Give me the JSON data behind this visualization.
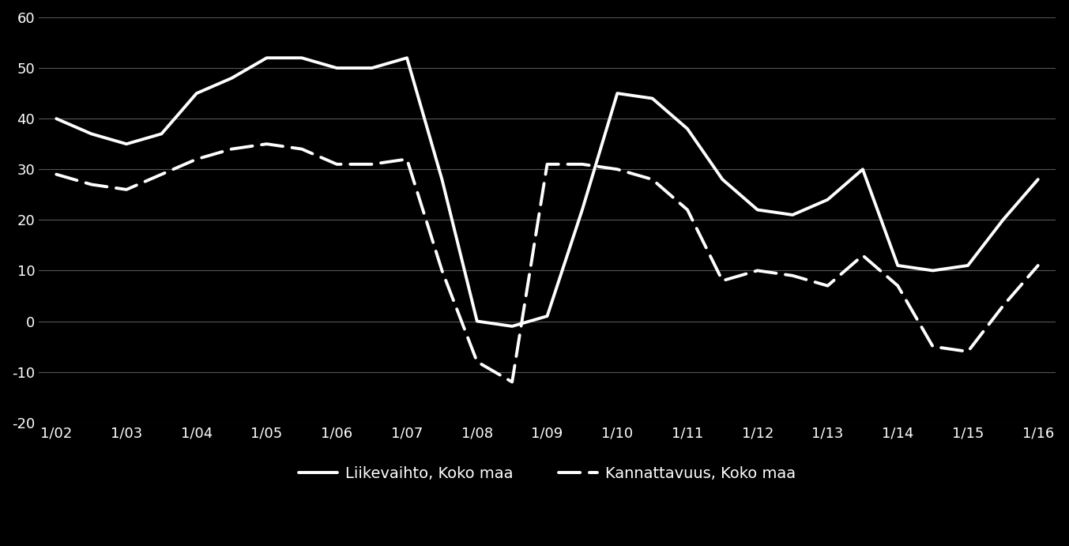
{
  "x_labels": [
    "1/02",
    "1/03",
    "1/04",
    "1/05",
    "1/06",
    "1/07",
    "1/08",
    "1/09",
    "1/10",
    "1/11",
    "1/12",
    "1/13",
    "1/14",
    "1/15",
    "1/16"
  ],
  "x_positions": [
    0,
    2,
    4,
    6,
    8,
    10,
    12,
    14,
    16,
    18,
    20,
    22,
    24,
    26,
    28
  ],
  "liikevaihto_x": [
    0,
    1,
    2,
    3,
    4,
    5,
    6,
    7,
    8,
    9,
    10,
    11,
    12,
    13,
    14,
    15,
    16,
    17,
    18,
    19,
    20,
    21,
    22,
    23,
    24,
    25,
    26,
    27,
    28
  ],
  "liikevaihto_y": [
    40,
    37,
    35,
    37,
    45,
    48,
    52,
    52,
    50,
    50,
    52,
    28,
    0,
    -1,
    1,
    22,
    45,
    44,
    38,
    28,
    22,
    21,
    24,
    30,
    11,
    10,
    11,
    20,
    28
  ],
  "kannattavuus_x": [
    0,
    1,
    2,
    3,
    4,
    5,
    6,
    7,
    8,
    9,
    10,
    11,
    12,
    13,
    14,
    15,
    16,
    17,
    18,
    19,
    20,
    21,
    22,
    23,
    24,
    25,
    26,
    27,
    28
  ],
  "kannattavuus_y": [
    29,
    27,
    26,
    29,
    32,
    34,
    35,
    34,
    31,
    31,
    32,
    10,
    -8,
    -12,
    31,
    31,
    30,
    28,
    22,
    8,
    10,
    9,
    7,
    13,
    7,
    -5,
    -6,
    3,
    11
  ],
  "ylim": [
    -20,
    60
  ],
  "yticks": [
    -20,
    -10,
    0,
    10,
    20,
    30,
    40,
    50,
    60
  ],
  "background_color": "#000000",
  "line_color": "#ffffff",
  "grid_color": "#555555",
  "legend_liikevaihto": "Liikevaihto, Koko maa",
  "legend_kannattavuus": "Kannattavuus, Koko maa",
  "linewidth": 2.8,
  "text_color": "#ffffff"
}
